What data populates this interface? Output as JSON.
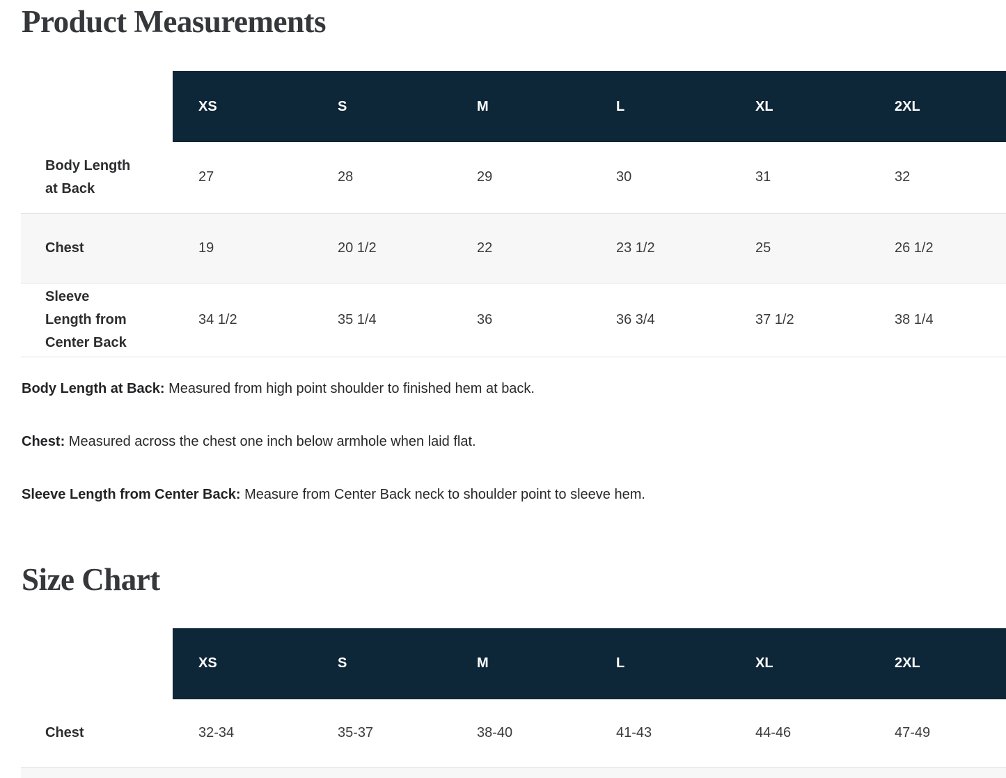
{
  "page": {
    "product_measurements_title": "Product Measurements",
    "size_chart_title": "Size Chart"
  },
  "colors": {
    "table_header_bg": "#0e2738",
    "table_header_text": "#ffffff",
    "row_stripe_bg": "#f7f7f7",
    "row_border": "#e3e3e3",
    "title_text": "#36373b",
    "body_text": "#27282a"
  },
  "measurements_table": {
    "sizes": [
      "XS",
      "S",
      "M",
      "L",
      "XL",
      "2XL"
    ],
    "rows": [
      {
        "label": "Body Length at Back",
        "values": [
          "27",
          "28",
          "29",
          "30",
          "31",
          "32"
        ]
      },
      {
        "label": "Chest",
        "values": [
          "19",
          "20 1/2",
          "22",
          "23 1/2",
          "25",
          "26 1/2"
        ]
      },
      {
        "label": "Sleeve Length from Center Back",
        "values": [
          "34 1/2",
          "35 1/4",
          "36",
          "36 3/4",
          "37 1/2",
          "38 1/4"
        ]
      }
    ]
  },
  "definitions": [
    {
      "term": "Body Length at Back:",
      "text": "Measured from high point shoulder to finished hem at back."
    },
    {
      "term": "Chest:",
      "text": "Measured across the chest one inch below armhole when laid flat."
    },
    {
      "term": "Sleeve Length from Center Back:",
      "text": "Measure from Center Back neck to shoulder point to sleeve hem."
    }
  ],
  "size_chart_table": {
    "sizes": [
      "XS",
      "S",
      "M",
      "L",
      "XL",
      "2XL"
    ],
    "rows": [
      {
        "label": "Chest",
        "values": [
          "32-34",
          "35-37",
          "38-40",
          "41-43",
          "44-46",
          "47-49"
        ]
      }
    ]
  }
}
